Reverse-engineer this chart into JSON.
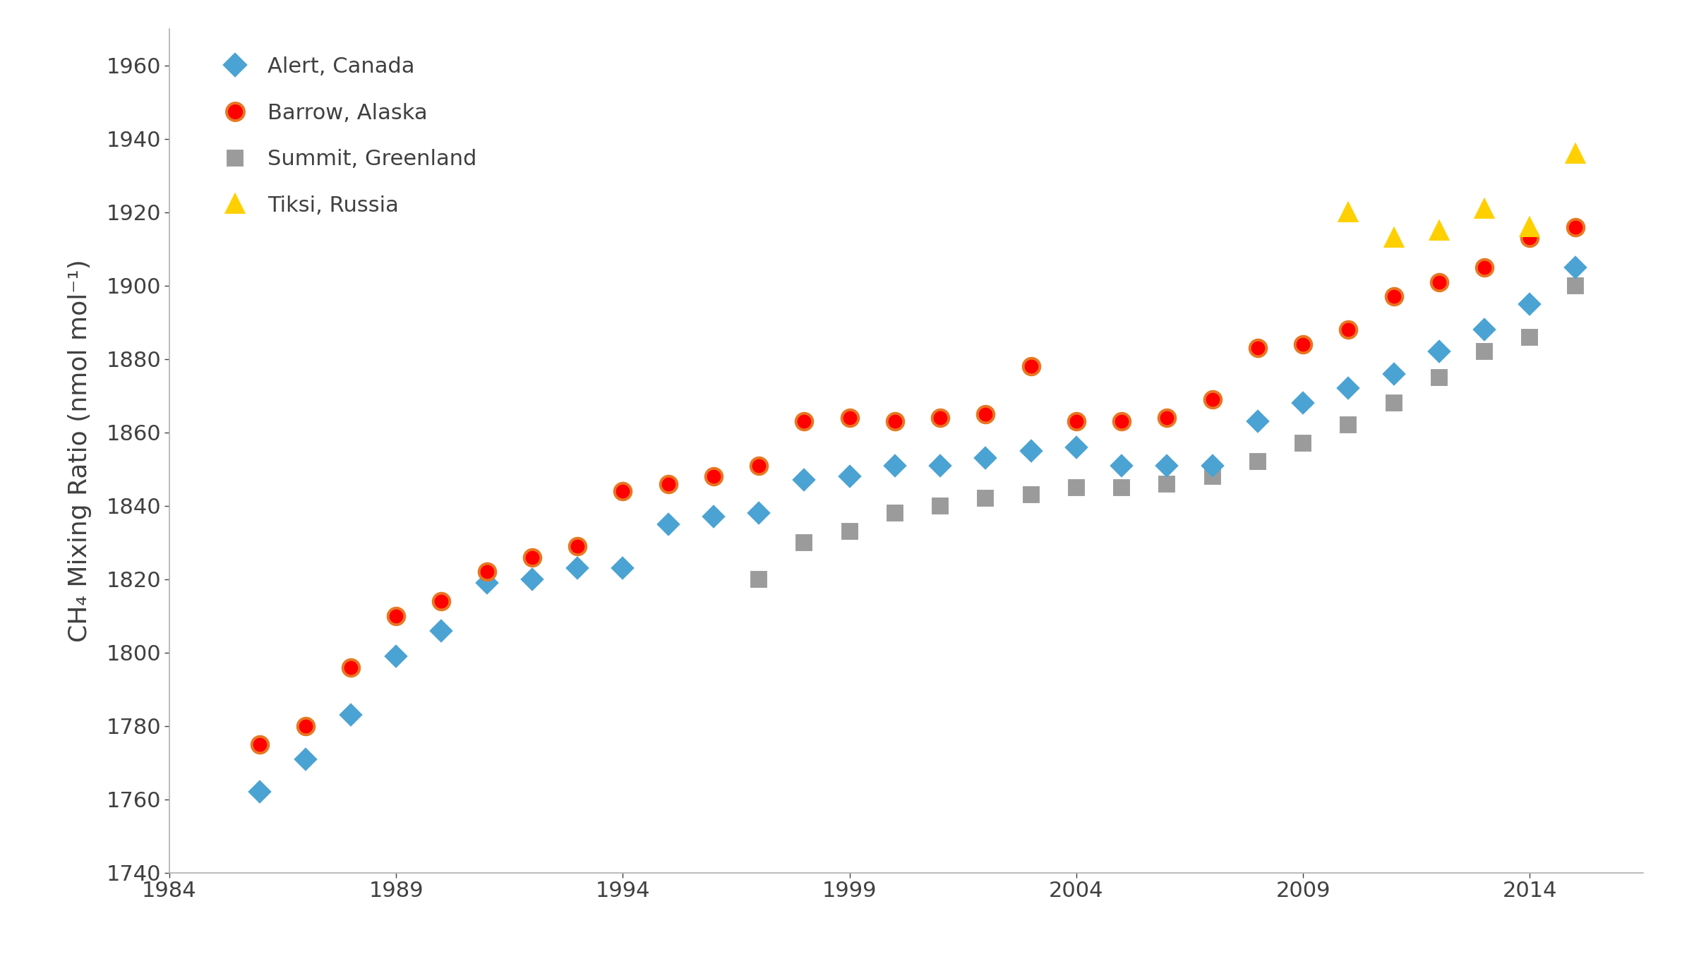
{
  "alert_canada": {
    "x": [
      1986,
      1987,
      1988,
      1989,
      1990,
      1991,
      1992,
      1993,
      1994,
      1995,
      1996,
      1997,
      1998,
      1999,
      2000,
      2001,
      2002,
      2003,
      2004,
      2005,
      2006,
      2007,
      2008,
      2009,
      2010,
      2011,
      2012,
      2013,
      2014,
      2015
    ],
    "y": [
      1762,
      1771,
      1783,
      1799,
      1806,
      1819,
      1820,
      1823,
      1823,
      1835,
      1837,
      1838,
      1847,
      1848,
      1851,
      1851,
      1853,
      1855,
      1856,
      1851,
      1851,
      1851,
      1863,
      1868,
      1872,
      1876,
      1882,
      1888,
      1895,
      1905
    ],
    "color": "#4BA3D3",
    "edge_color": "#4BA3D3",
    "marker": "D",
    "label": "Alert, Canada",
    "zorder": 3,
    "markersize": 14
  },
  "barrow_alaska": {
    "x": [
      1986,
      1987,
      1988,
      1989,
      1990,
      1991,
      1992,
      1993,
      1994,
      1995,
      1996,
      1997,
      1998,
      1999,
      2000,
      2001,
      2002,
      2003,
      2004,
      2005,
      2006,
      2007,
      2008,
      2009,
      2010,
      2011,
      2012,
      2013,
      2014,
      2015
    ],
    "y": [
      1775,
      1780,
      1796,
      1810,
      1814,
      1822,
      1826,
      1829,
      1844,
      1846,
      1848,
      1851,
      1863,
      1864,
      1863,
      1864,
      1865,
      1878,
      1863,
      1863,
      1864,
      1869,
      1883,
      1884,
      1888,
      1897,
      1901,
      1905,
      1913,
      1916
    ],
    "color": "#FF0000",
    "edge_color": "#E87722",
    "marker": "o",
    "label": "Barrow, Alaska",
    "zorder": 4,
    "markersize": 17
  },
  "summit_greenland": {
    "x": [
      1997,
      1998,
      1999,
      2000,
      2001,
      2002,
      2003,
      2004,
      2005,
      2006,
      2007,
      2008,
      2009,
      2010,
      2011,
      2012,
      2013,
      2014,
      2015
    ],
    "y": [
      1820,
      1830,
      1833,
      1838,
      1840,
      1842,
      1843,
      1845,
      1845,
      1846,
      1848,
      1852,
      1857,
      1862,
      1868,
      1875,
      1882,
      1886,
      1900
    ],
    "color": "#9B9B9B",
    "edge_color": "#9B9B9B",
    "marker": "s",
    "label": "Summit, Greenland",
    "zorder": 2,
    "markersize": 14
  },
  "tiksi_russia": {
    "x": [
      2010,
      2011,
      2012,
      2013,
      2014,
      2015
    ],
    "y": [
      1920,
      1913,
      1915,
      1921,
      1916,
      1936
    ],
    "color": "#FFD000",
    "edge_color": "#FFD000",
    "marker": "^",
    "label": "Tiksi, Russia",
    "zorder": 5,
    "markersize": 17
  },
  "xlim": [
    1984,
    2016.5
  ],
  "ylim": [
    1740,
    1970
  ],
  "xticks": [
    1984,
    1989,
    1994,
    1999,
    2004,
    2009,
    2014
  ],
  "yticks": [
    1740,
    1760,
    1780,
    1800,
    1820,
    1840,
    1860,
    1880,
    1900,
    1920,
    1940,
    1960
  ],
  "ylabel": "CH₄ Mixing Ratio (nmol mol⁻¹)",
  "background_color": "#FFFFFF",
  "spine_color": "#B0B0B0",
  "tick_label_color": "#404040",
  "legend_labels": [
    "Alert, Canada",
    "Barrow, Alaska",
    "Summit, Greenland",
    "Tiksi, Russia"
  ]
}
